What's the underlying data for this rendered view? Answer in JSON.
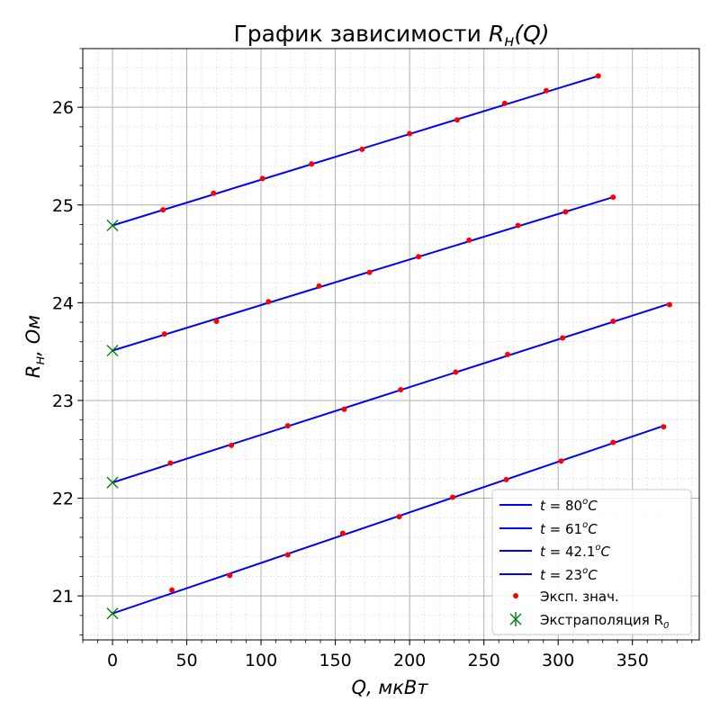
{
  "chart_data": {
    "type": "line",
    "title": "График зависимости R_н(Q)",
    "title_parts": {
      "prefix": "График зависимости ",
      "R": "R",
      "sub": "н",
      "suffix": "(Q)"
    },
    "xlabel": "Q, мкВт",
    "ylabel": "R_н, Ом",
    "xlabel_parts": {
      "var": "Q",
      "unit": ", мкВт"
    },
    "ylabel_parts": {
      "R": "R",
      "sub": "н",
      "unit": ", Ом"
    },
    "xlim": [
      -20,
      395
    ],
    "ylim": [
      20.55,
      26.6
    ],
    "xticks": [
      0,
      50,
      100,
      150,
      200,
      250,
      300,
      350
    ],
    "yticks": [
      21,
      22,
      23,
      24,
      25,
      26
    ],
    "x_minor_step": 10,
    "y_minor_step": 0.2,
    "grid": "major and minor",
    "legend_position": "bottom-right",
    "colors": {
      "line": "#0000ff",
      "points": "#ff0000",
      "extrap": "#008000",
      "grid_major": "#b0b0b0",
      "grid_minor": "#d8d8d8"
    },
    "legend": [
      {
        "label": "t = 80°C",
        "kind": "line"
      },
      {
        "label": "t = 61°C",
        "kind": "line"
      },
      {
        "label": "t = 42.1°C",
        "kind": "line"
      },
      {
        "label": "t = 23°C",
        "kind": "line"
      },
      {
        "label": "Эксп. знач.",
        "kind": "points"
      },
      {
        "label": "Экстраполяция R₀",
        "kind": "extrap"
      }
    ],
    "legend_parts": [
      {
        "pre": "t = ",
        "num": "80",
        "sup": "o",
        "post": "C"
      },
      {
        "pre": "t = ",
        "num": "61",
        "sup": "o",
        "post": "C"
      },
      {
        "pre": "t = ",
        "num": "42.1",
        "sup": "o",
        "post": "C"
      },
      {
        "pre": "t = ",
        "num": "23",
        "sup": "o",
        "post": "C"
      },
      {
        "pre": "Эксп. знач.",
        "num": "",
        "sup": "",
        "post": ""
      },
      {
        "pre": "Экстраполяция R",
        "num": "",
        "sup": "",
        "post": "",
        "sub": "0"
      }
    ],
    "series": [
      {
        "name": "t = 80°C",
        "fit": {
          "x": [
            0,
            327
          ],
          "y": [
            24.79,
            26.32
          ]
        },
        "points": {
          "x": [
            34,
            68,
            101,
            134,
            168,
            200,
            232,
            264,
            292,
            327
          ],
          "y": [
            24.95,
            25.12,
            25.27,
            25.42,
            25.57,
            25.73,
            25.87,
            26.04,
            26.17,
            26.32
          ]
        },
        "extrapolation": {
          "x": 0,
          "y": 24.79
        }
      },
      {
        "name": "t = 61°C",
        "fit": {
          "x": [
            0,
            337
          ],
          "y": [
            23.51,
            25.08
          ]
        },
        "points": {
          "x": [
            35,
            70,
            105,
            139,
            173,
            206,
            240,
            273,
            305,
            337
          ],
          "y": [
            23.68,
            23.81,
            24.01,
            24.17,
            24.31,
            24.47,
            24.64,
            24.79,
            24.93,
            25.08
          ]
        },
        "extrapolation": {
          "x": 0,
          "y": 23.51
        }
      },
      {
        "name": "t = 42.1°C",
        "fit": {
          "x": [
            0,
            375
          ],
          "y": [
            22.16,
            23.99
          ]
        },
        "points": {
          "x": [
            39,
            80,
            118,
            156,
            194,
            231,
            266,
            303,
            337,
            375
          ],
          "y": [
            22.36,
            22.54,
            22.74,
            22.91,
            23.11,
            23.29,
            23.47,
            23.64,
            23.81,
            23.98
          ]
        },
        "extrapolation": {
          "x": 0,
          "y": 22.16
        }
      },
      {
        "name": "t = 23°C",
        "fit": {
          "x": [
            0,
            371
          ],
          "y": [
            20.82,
            22.74
          ]
        },
        "points": {
          "x": [
            40,
            79,
            118,
            155,
            193,
            229,
            265,
            302,
            337,
            371
          ],
          "y": [
            21.06,
            21.21,
            21.42,
            21.64,
            21.81,
            22.01,
            22.19,
            22.38,
            22.57,
            22.73
          ]
        },
        "extrapolation": {
          "x": 0,
          "y": 20.82
        }
      }
    ]
  }
}
